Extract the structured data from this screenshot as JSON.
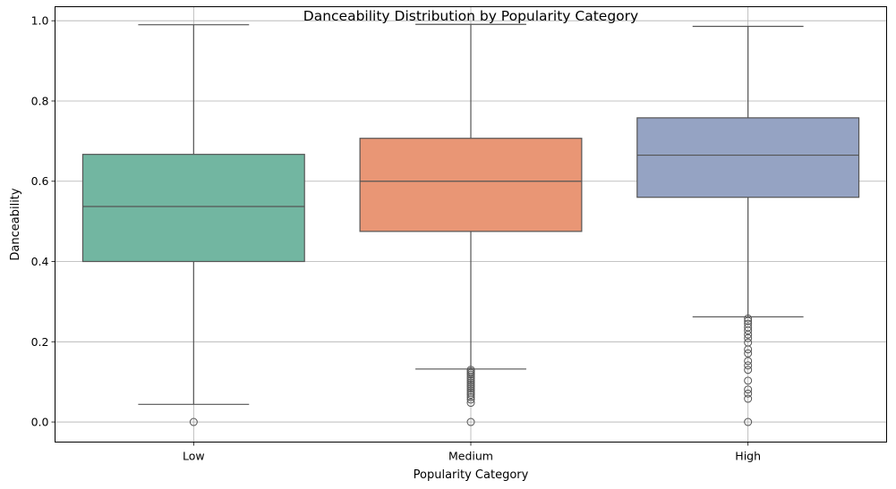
{
  "chart_data": {
    "type": "box",
    "title": "Danceability Distribution by Popularity Category",
    "xlabel": "Popularity Category",
    "ylabel": "Danceability",
    "ylim": [
      -0.05,
      1.035
    ],
    "yticks": [
      0.0,
      0.2,
      0.4,
      0.6,
      0.8,
      1.0
    ],
    "ytick_labels": [
      "0.0",
      "0.2",
      "0.4",
      "0.6",
      "0.8",
      "1.0"
    ],
    "grid": true,
    "categories": [
      "Low",
      "Medium",
      "High"
    ],
    "boxes": [
      {
        "category": "Low",
        "color": "#72b6a1",
        "whisker_low": 0.044,
        "q1": 0.4,
        "median": 0.537,
        "q3": 0.667,
        "whisker_high": 0.99,
        "outliers": [
          0.0
        ]
      },
      {
        "category": "Medium",
        "color": "#e99675",
        "whisker_low": 0.132,
        "q1": 0.475,
        "median": 0.6,
        "q3": 0.707,
        "whisker_high": 0.991,
        "outliers": [
          0.0,
          0.048,
          0.056,
          0.062,
          0.068,
          0.073,
          0.078,
          0.083,
          0.088,
          0.093,
          0.098,
          0.103,
          0.108,
          0.113,
          0.118,
          0.122,
          0.126,
          0.13
        ]
      },
      {
        "category": "High",
        "color": "#95a3c3",
        "whisker_low": 0.262,
        "q1": 0.56,
        "median": 0.665,
        "q3": 0.758,
        "whisker_high": 0.986,
        "outliers": [
          0.0,
          0.058,
          0.071,
          0.081,
          0.103,
          0.13,
          0.141,
          0.152,
          0.171,
          0.181,
          0.198,
          0.209,
          0.218,
          0.228,
          0.236,
          0.245,
          0.252,
          0.258
        ]
      }
    ]
  }
}
